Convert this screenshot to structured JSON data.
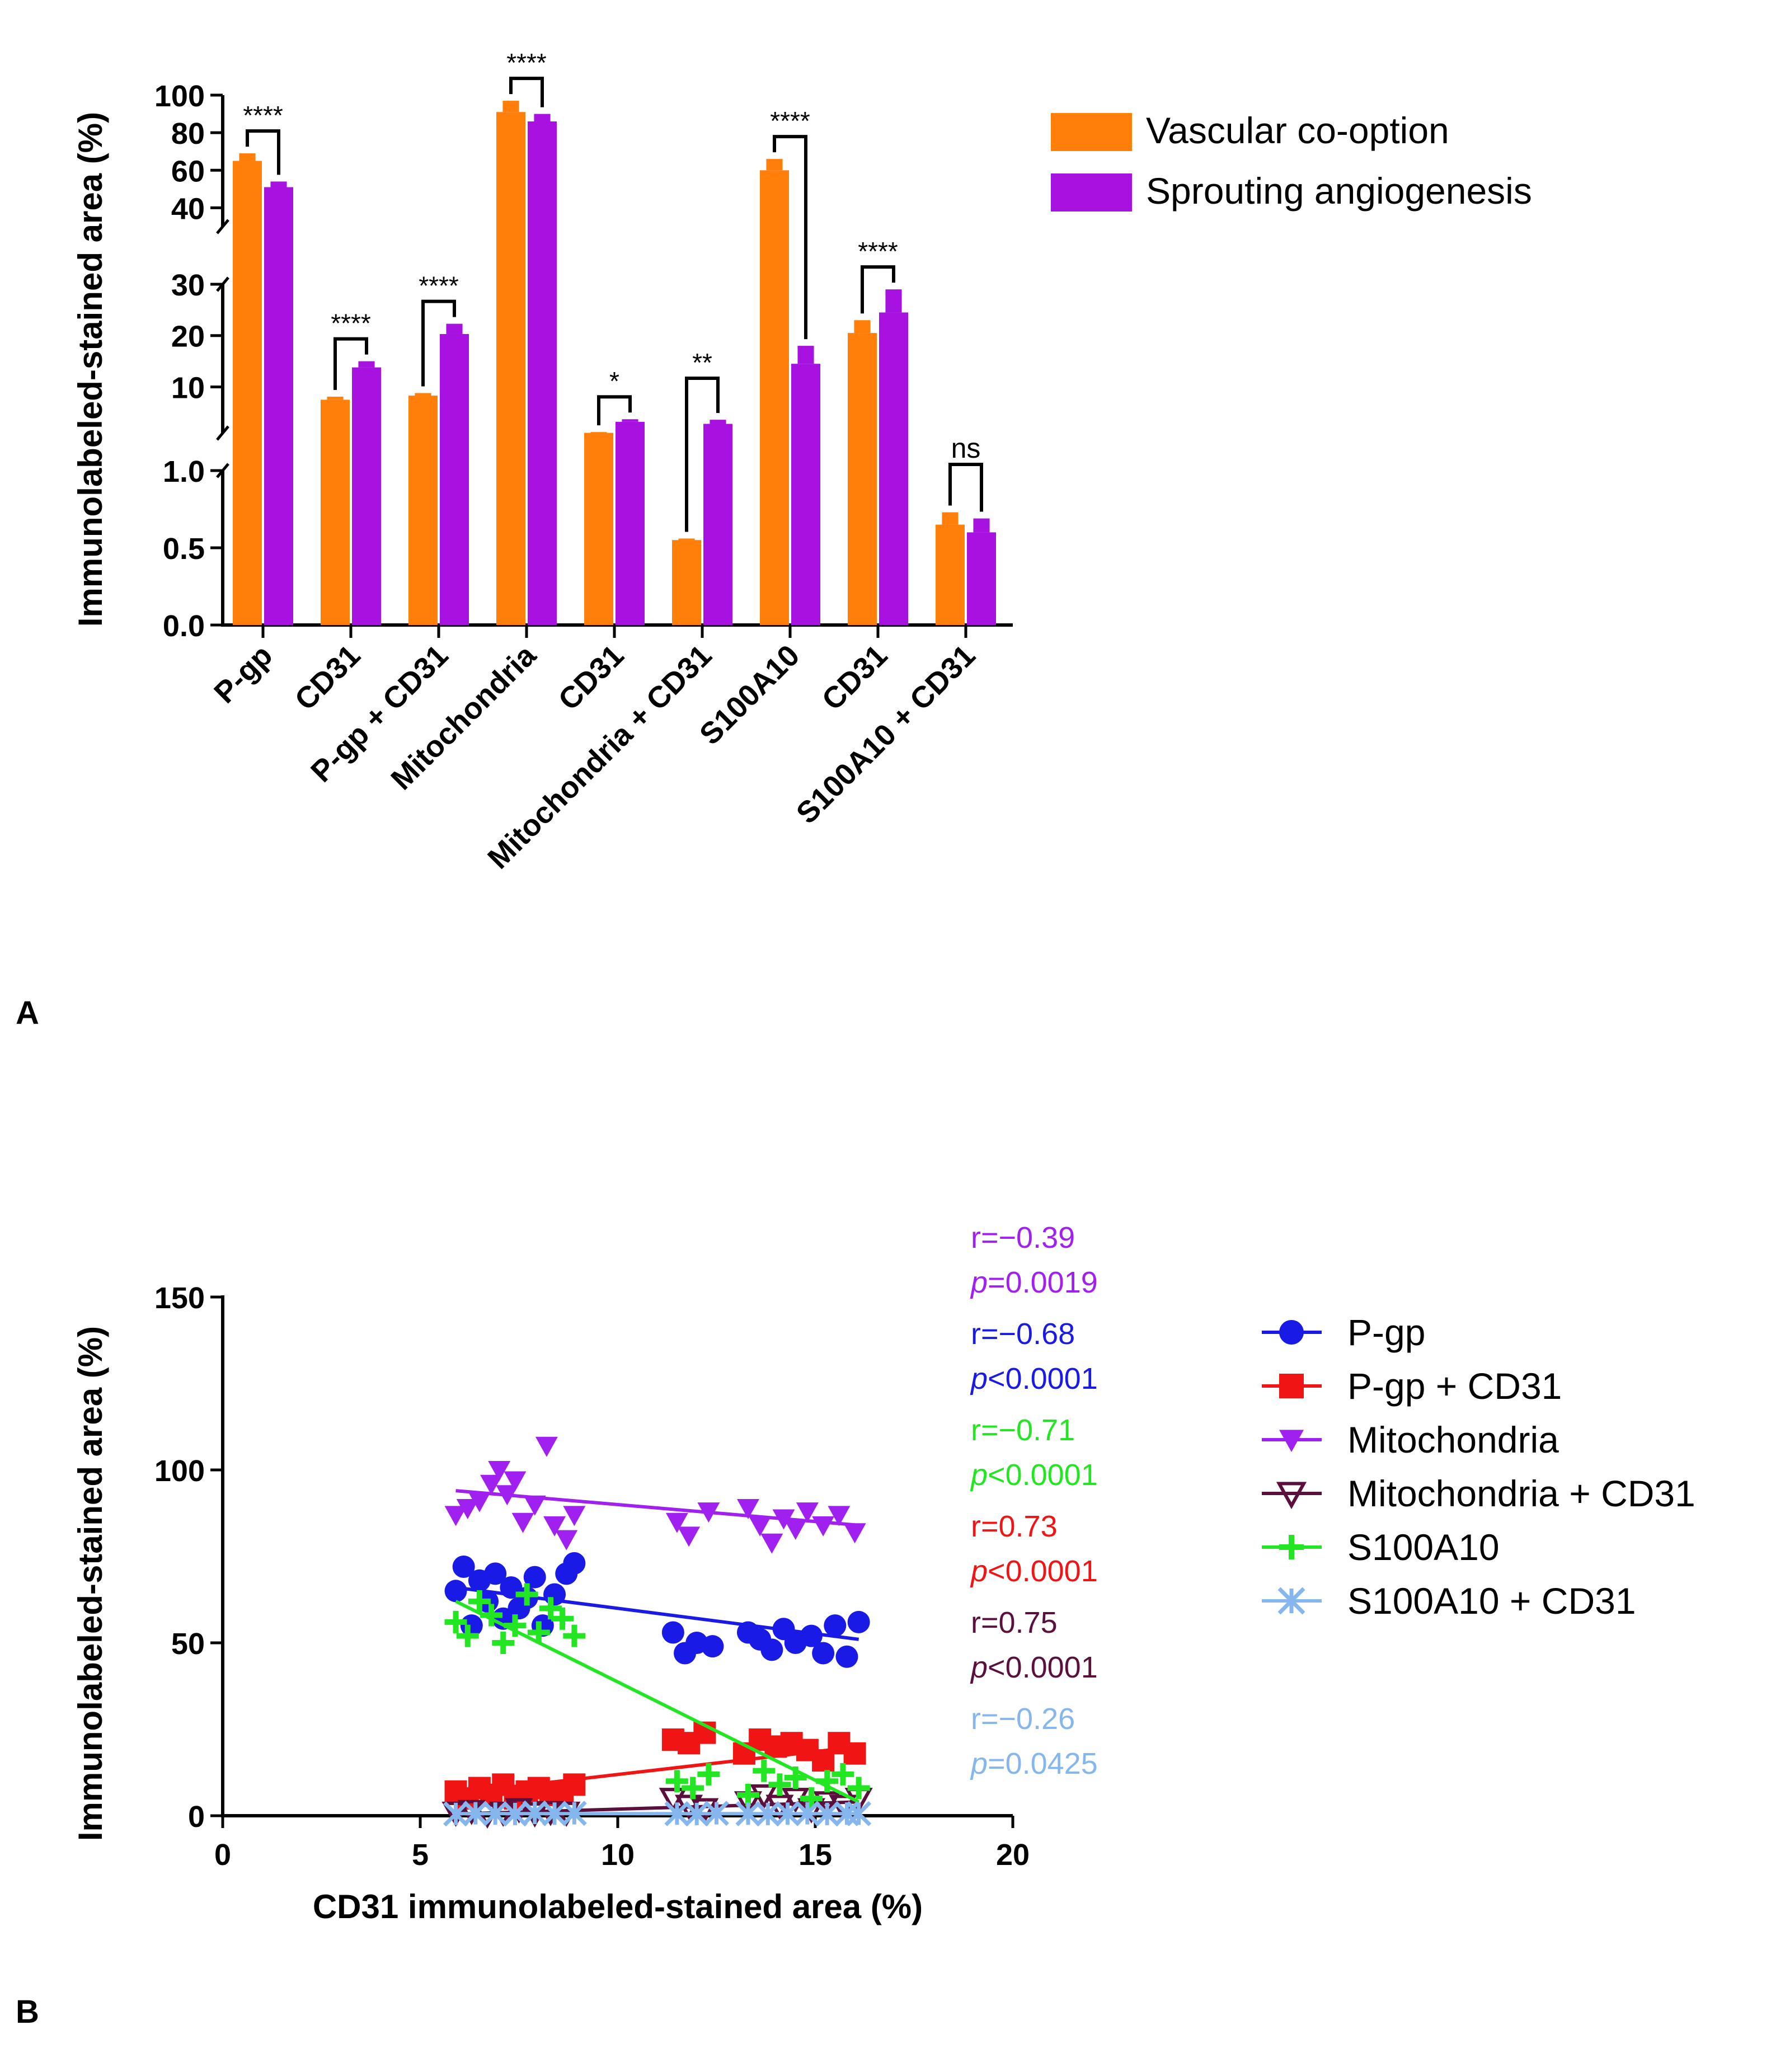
{
  "panel_labels": [
    "A",
    "B"
  ],
  "colors": {
    "vascular": "#FF7F0A",
    "sprouting": "#A812E0",
    "axis": "#000000",
    "pgp": "#1A1AE6",
    "pgp_cd31": "#F01414",
    "mito": "#A020F0",
    "mito_cd31": "#5A0F3C",
    "s100": "#22E622",
    "s100_cd31": "#86B6EE"
  },
  "chart_data": [
    {
      "type": "bar",
      "panel": "A",
      "ylabel": "Immunolabeled-stained area (%)",
      "xlabel": "",
      "broken_axis_segments": [
        {
          "range": [
            0,
            1.0
          ],
          "ticks": [
            "0.0",
            "0.5",
            "1.0"
          ]
        },
        {
          "range": [
            1.0,
            30
          ],
          "ticks": [
            "10",
            "20",
            "30"
          ]
        },
        {
          "range": [
            30,
            100
          ],
          "ticks": [
            "40",
            "60",
            "80",
            "100"
          ]
        }
      ],
      "categories": [
        "P-gp",
        "CD31",
        "P-gp + CD31",
        "Mitochondria",
        "CD31",
        "Mitochondria + CD31",
        "S100A10",
        "CD31",
        "S100A10 + CD31"
      ],
      "series": [
        {
          "name": "Vascular co-option",
          "values": [
            65,
            7.5,
            8.3,
            91,
            1.05,
            0.55,
            60,
            20.5,
            0.65
          ],
          "errors": [
            4,
            0.6,
            0.5,
            6,
            0.15,
            0.01,
            6,
            2.5,
            0.08
          ]
        },
        {
          "name": "Sprouting angiogenesis",
          "values": [
            51,
            13.8,
            20.3,
            86,
            3.2,
            2.8,
            14.5,
            24.5,
            0.6
          ],
          "errors": [
            3,
            1.2,
            2.0,
            4,
            0.5,
            0.8,
            3.5,
            4.5,
            0.09
          ]
        }
      ],
      "significance": [
        {
          "index": 0,
          "label": "****"
        },
        {
          "index": 1,
          "label": "****"
        },
        {
          "index": 2,
          "label": "****"
        },
        {
          "index": 3,
          "label": "****"
        },
        {
          "index": 4,
          "label": "*"
        },
        {
          "index": 5,
          "label": "**"
        },
        {
          "index": 6,
          "label": "****"
        },
        {
          "index": 7,
          "label": "****"
        },
        {
          "index": 8,
          "label": "ns"
        }
      ],
      "legend": [
        "Vascular co-option",
        "Sprouting angiogenesis"
      ],
      "legend_position": "top-right"
    },
    {
      "type": "scatter",
      "panel": "B",
      "xlabel": "CD31 immunolabeled-stained area (%)",
      "ylabel": "Immunolabeled-stained area (%)",
      "xlim": [
        0,
        20
      ],
      "ylim": [
        0,
        150
      ],
      "xticks": [
        "0",
        "5",
        "10",
        "15",
        "20"
      ],
      "yticks": [
        "0",
        "50",
        "100",
        "150"
      ],
      "legend_position": "right",
      "series": [
        {
          "name": "P-gp",
          "key": "pgp",
          "marker": "circle",
          "x": [
            5.9,
            6.1,
            6.3,
            6.5,
            6.7,
            6.9,
            7.1,
            7.3,
            7.5,
            7.7,
            7.9,
            8.1,
            8.4,
            8.7,
            8.9,
            11.4,
            11.7,
            12.0,
            12.4,
            13.3,
            13.6,
            13.9,
            14.2,
            14.5,
            14.9,
            15.2,
            15.5,
            15.8,
            16.1
          ],
          "y": [
            65,
            72,
            55,
            68,
            62,
            70,
            57,
            66,
            60,
            63,
            69,
            55,
            64,
            70,
            73,
            53,
            47,
            50,
            49,
            53,
            51,
            48,
            54,
            50,
            52,
            47,
            55,
            46,
            56
          ],
          "fit": [
            [
              5.9,
              66
            ],
            [
              16.1,
              51
            ]
          ]
        },
        {
          "name": "P-gp + CD31",
          "key": "pgp_cd31",
          "marker": "square",
          "x": [
            5.9,
            6.2,
            6.5,
            6.8,
            7.1,
            7.4,
            7.7,
            8.0,
            8.3,
            8.6,
            8.9,
            11.4,
            11.8,
            12.2,
            13.2,
            13.6,
            14.0,
            14.4,
            14.8,
            15.2,
            15.6,
            16.0
          ],
          "y": [
            7,
            5,
            8,
            6,
            9,
            5,
            7,
            8,
            6,
            7,
            9,
            22,
            21,
            24,
            18,
            22,
            20,
            21,
            19,
            16,
            21,
            18
          ],
          "fit": [
            [
              5.9,
              6.5
            ],
            [
              16.1,
              20
            ]
          ]
        },
        {
          "name": "Mitochondria",
          "key": "mito",
          "marker": "tri-down",
          "x": [
            5.9,
            6.2,
            6.5,
            6.8,
            7.0,
            7.2,
            7.4,
            7.6,
            7.9,
            8.2,
            8.4,
            8.7,
            8.9,
            11.5,
            11.8,
            12.3,
            13.3,
            13.6,
            13.9,
            14.2,
            14.5,
            14.8,
            15.2,
            15.6,
            16.0
          ],
          "y": [
            87,
            89,
            91,
            96,
            100,
            93,
            97,
            85,
            90,
            107,
            84,
            80,
            87,
            85,
            81,
            88,
            89,
            84,
            79,
            86,
            83,
            88,
            84,
            87,
            82
          ],
          "fit": [
            [
              5.9,
              94
            ],
            [
              16.1,
              84
            ]
          ]
        },
        {
          "name": "Mitochondria + CD31",
          "key": "mito_cd31",
          "marker": "tri-down-open",
          "x": [
            5.9,
            6.3,
            6.7,
            7.1,
            7.5,
            7.9,
            8.3,
            8.7,
            11.4,
            11.8,
            12.2,
            13.3,
            13.7,
            14.1,
            14.5,
            14.9,
            15.3,
            15.7,
            16.1
          ],
          "y": [
            1,
            1.5,
            0.5,
            1,
            2,
            0.8,
            1.2,
            1,
            5,
            3,
            2,
            4,
            6,
            3,
            5,
            2,
            4,
            3,
            5
          ],
          "fit": [
            [
              5.9,
              0.5
            ],
            [
              16.1,
              4
            ]
          ]
        },
        {
          "name": "S100A10",
          "key": "s100",
          "marker": "plus",
          "x": [
            5.9,
            6.2,
            6.5,
            6.8,
            7.1,
            7.4,
            7.7,
            8.0,
            8.3,
            8.6,
            8.9,
            11.5,
            11.9,
            12.3,
            13.3,
            13.7,
            14.1,
            14.5,
            14.9,
            15.3,
            15.7,
            16.1
          ],
          "y": [
            56,
            52,
            62,
            58,
            50,
            55,
            64,
            53,
            60,
            57,
            52,
            10,
            8,
            12,
            6,
            13,
            9,
            11,
            5,
            10,
            12,
            8
          ],
          "fit": [
            [
              5.9,
              62
            ],
            [
              16.1,
              4
            ]
          ]
        },
        {
          "name": "S100A10 + CD31",
          "key": "s100_cd31",
          "marker": "x-star",
          "x": [
            5.9,
            6.4,
            6.9,
            7.4,
            7.9,
            8.4,
            8.9,
            11.5,
            12.0,
            12.5,
            13.3,
            13.8,
            14.3,
            14.8,
            15.3,
            15.8,
            16.1
          ],
          "y": [
            0.5,
            0.7,
            0.6,
            0.5,
            0.8,
            0.6,
            0.7,
            0.6,
            0.5,
            0.7,
            0.6,
            0.5,
            0.6,
            0.7,
            0.5,
            0.6,
            0.6
          ],
          "fit": [
            [
              5.9,
              0.6
            ],
            [
              16.1,
              0.6
            ]
          ]
        }
      ],
      "annotations": [
        {
          "key": "mito",
          "r": "r=−0.39",
          "p_italic": "p",
          "p_rest": "=0.0019"
        },
        {
          "key": "pgp",
          "r": "r=−0.68",
          "p_italic": "p",
          "p_rest": "<0.0001"
        },
        {
          "key": "s100",
          "r": "r=−0.71",
          "p_italic": "p",
          "p_rest": "<0.0001"
        },
        {
          "key": "pgp_cd31",
          "r": "r=0.73",
          "p_italic": "p",
          "p_rest": "<0.0001"
        },
        {
          "key": "mito_cd31",
          "r": "r=0.75",
          "p_italic": "p",
          "p_rest": "<0.0001"
        },
        {
          "key": "s100_cd31",
          "r": "r=−0.26",
          "p_italic": "p",
          "p_rest": "=0.0425"
        }
      ]
    }
  ]
}
